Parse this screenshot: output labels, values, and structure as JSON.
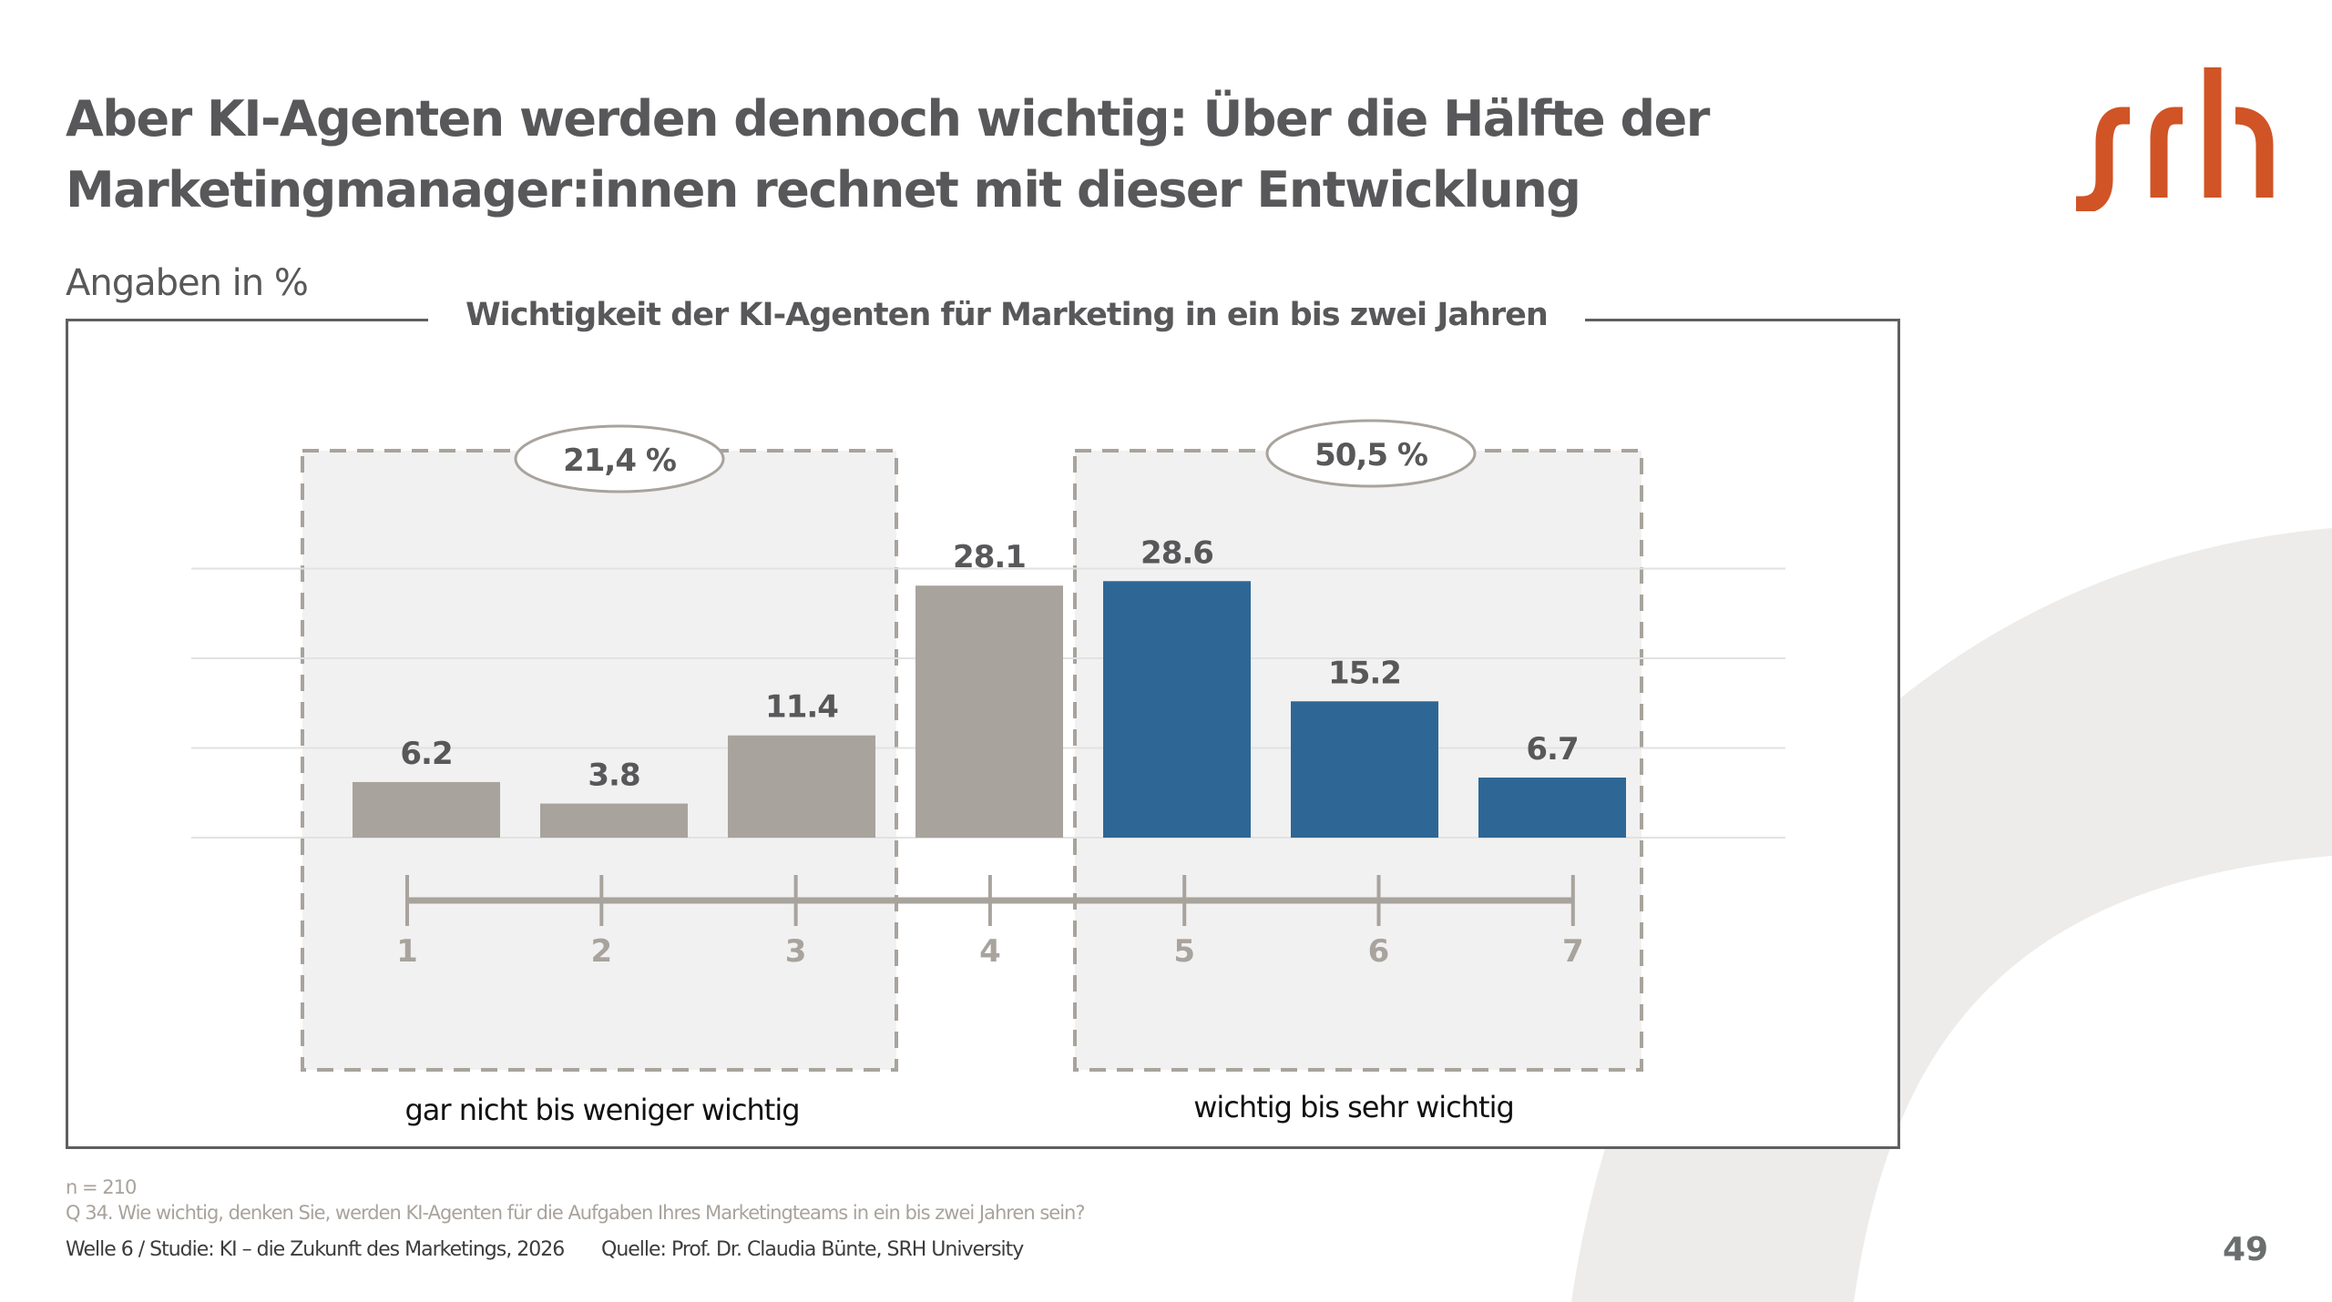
{
  "slide": {
    "title_lines": [
      "Aber KI-Agenten werden dennoch wichtig: Über die Hälfte der",
      "Marketingmanager:innen rechnet mit dieser Entwicklung"
    ],
    "subtitle": "Angaben in %",
    "logo_text": "srh",
    "page_number": "49",
    "colors": {
      "brand_orange": "#d05426",
      "neutral_bar": "#a8a39c",
      "positive_bar": "#2e6795",
      "text_dark": "#58585a",
      "group_fill": "#f1f1f1",
      "background_arc": "#edecea"
    }
  },
  "footer": {
    "sample": "n = 210",
    "question": "Q 34. Wie wichtig, denken Sie, werden KI-Agenten für die Aufgaben Ihres Marketingteams in ein bis zwei Jahren sein?",
    "study": "Welle 6 / Studie: KI – die Zukunft des Marketings, 2026",
    "source": "Quelle: Prof. Dr. Claudia Bünte, SRH University"
  },
  "chart_data": {
    "type": "bar",
    "title": "Wichtigkeit der KI-Agenten für Marketing in ein bis zwei Jahren",
    "xlabel": "",
    "ylabel": "Angaben in %",
    "categories": [
      "1",
      "2",
      "3",
      "4",
      "5",
      "6",
      "7"
    ],
    "values": [
      6.2,
      3.8,
      11.4,
      28.1,
      28.6,
      15.2,
      6.7
    ],
    "value_labels": [
      "6.2",
      "3.8",
      "11.4",
      "28.1",
      "28.6",
      "15.2",
      "6.7"
    ],
    "bar_groups": [
      "neutral",
      "neutral",
      "neutral",
      "neutral",
      "positive",
      "positive",
      "positive"
    ],
    "ylim": [
      0,
      30
    ],
    "grid": true,
    "gridlines": [
      0,
      10,
      20,
      30
    ],
    "groups": [
      {
        "name": "low",
        "label": "gar nicht bis weniger wichtig",
        "categories": [
          "1",
          "2",
          "3"
        ],
        "total_label": "21,4 %",
        "total": 21.4
      },
      {
        "name": "high",
        "label": "wichtig bis sehr wichtig",
        "categories": [
          "5",
          "6",
          "7"
        ],
        "total_label": "50,5 %",
        "total": 50.5
      }
    ]
  }
}
